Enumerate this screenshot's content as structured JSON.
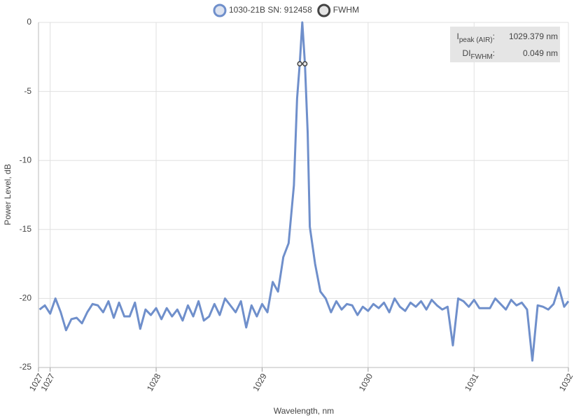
{
  "chart_data": {
    "type": "line",
    "xlabel": "Wavelength, nm",
    "ylabel": "Power Level, dB",
    "x": [
      1026.9,
      1026.95,
      1027.0,
      1027.05,
      1027.1,
      1027.15,
      1027.2,
      1027.25,
      1027.3,
      1027.35,
      1027.4,
      1027.45,
      1027.5,
      1027.55,
      1027.6,
      1027.65,
      1027.7,
      1027.75,
      1027.8,
      1027.85,
      1027.9,
      1027.95,
      1028.0,
      1028.05,
      1028.1,
      1028.15,
      1028.2,
      1028.25,
      1028.3,
      1028.35,
      1028.4,
      1028.45,
      1028.5,
      1028.55,
      1028.6,
      1028.65,
      1028.7,
      1028.75,
      1028.8,
      1028.85,
      1028.9,
      1028.95,
      1029.0,
      1029.05,
      1029.1,
      1029.15,
      1029.2,
      1029.25,
      1029.3,
      1029.33,
      1029.355,
      1029.379,
      1029.404,
      1029.43,
      1029.45,
      1029.5,
      1029.55,
      1029.6,
      1029.65,
      1029.7,
      1029.75,
      1029.8,
      1029.85,
      1029.9,
      1029.95,
      1030.0,
      1030.05,
      1030.1,
      1030.15,
      1030.2,
      1030.25,
      1030.3,
      1030.35,
      1030.4,
      1030.45,
      1030.5,
      1030.55,
      1030.6,
      1030.65,
      1030.7,
      1030.75,
      1030.8,
      1030.85,
      1030.9,
      1030.95,
      1031.0,
      1031.05,
      1031.1,
      1031.15,
      1031.2,
      1031.25,
      1031.3,
      1031.35,
      1031.4,
      1031.45,
      1031.5,
      1031.55,
      1031.6,
      1031.65,
      1031.7,
      1031.75,
      1031.8,
      1031.85,
      1031.89
    ],
    "series": [
      {
        "name": "1030-21B SN: 912458",
        "color": "#6f8fcb",
        "fill": "#dde3f0",
        "values": [
          -20.8,
          -20.5,
          -21.1,
          -20.0,
          -21.0,
          -22.3,
          -21.5,
          -21.4,
          -21.8,
          -21.0,
          -20.4,
          -20.5,
          -21.0,
          -20.2,
          -21.4,
          -20.3,
          -21.3,
          -21.3,
          -20.3,
          -22.2,
          -20.8,
          -21.2,
          -20.7,
          -21.5,
          -20.7,
          -21.3,
          -20.8,
          -21.6,
          -20.5,
          -21.3,
          -20.2,
          -21.6,
          -21.3,
          -20.4,
          -21.2,
          -20.0,
          -20.5,
          -21.0,
          -20.2,
          -22.1,
          -20.5,
          -21.3,
          -20.4,
          -21.0,
          -18.8,
          -19.5,
          -17.0,
          -16.0,
          -11.8,
          -5.5,
          -3.0,
          0,
          -3.0,
          -8.0,
          -14.8,
          -17.5,
          -19.5,
          -20.0,
          -21.0,
          -20.2,
          -20.8,
          -20.4,
          -20.5,
          -21.2,
          -20.6,
          -20.9,
          -20.4,
          -20.7,
          -20.3,
          -21.0,
          -20.0,
          -20.6,
          -20.9,
          -20.3,
          -20.6,
          -20.2,
          -20.8,
          -20.1,
          -20.5,
          -20.8,
          -20.6,
          -23.4,
          -20.0,
          -20.2,
          -20.6,
          -20.1,
          -20.7,
          -20.7,
          -20.7,
          -20.0,
          -20.4,
          -20.8,
          -20.1,
          -20.5,
          -20.3,
          -20.8,
          -24.5,
          -20.5,
          -20.6,
          -20.8,
          -20.4,
          -19.2,
          -20.6,
          -20.2
        ]
      },
      {
        "name": "FWHM",
        "color": "#444444",
        "fill": "#e5e5e5",
        "x": [
          1029.355,
          1029.404
        ],
        "values": [
          -3,
          -3
        ]
      }
    ],
    "annotations": [
      {
        "symbol": "I",
        "subscript": "peak (AIR)",
        "suffix": ":",
        "value": "1029.379 nm"
      },
      {
        "symbol": "DI",
        "subscript": "FWHM",
        "suffix": ":",
        "value": "0.049 nm"
      }
    ],
    "xlim": [
      1026.89,
      1031.89
    ],
    "xticks": [
      {
        "value": 1026.89,
        "label": "1027"
      },
      1027,
      1028,
      1029,
      1030,
      1031,
      {
        "value": 1031.89,
        "label": "1032"
      }
    ],
    "ylim": [
      -25,
      0
    ],
    "yticks": [
      -25,
      -20,
      -15,
      -10,
      -5,
      0
    ],
    "grid": true
  }
}
